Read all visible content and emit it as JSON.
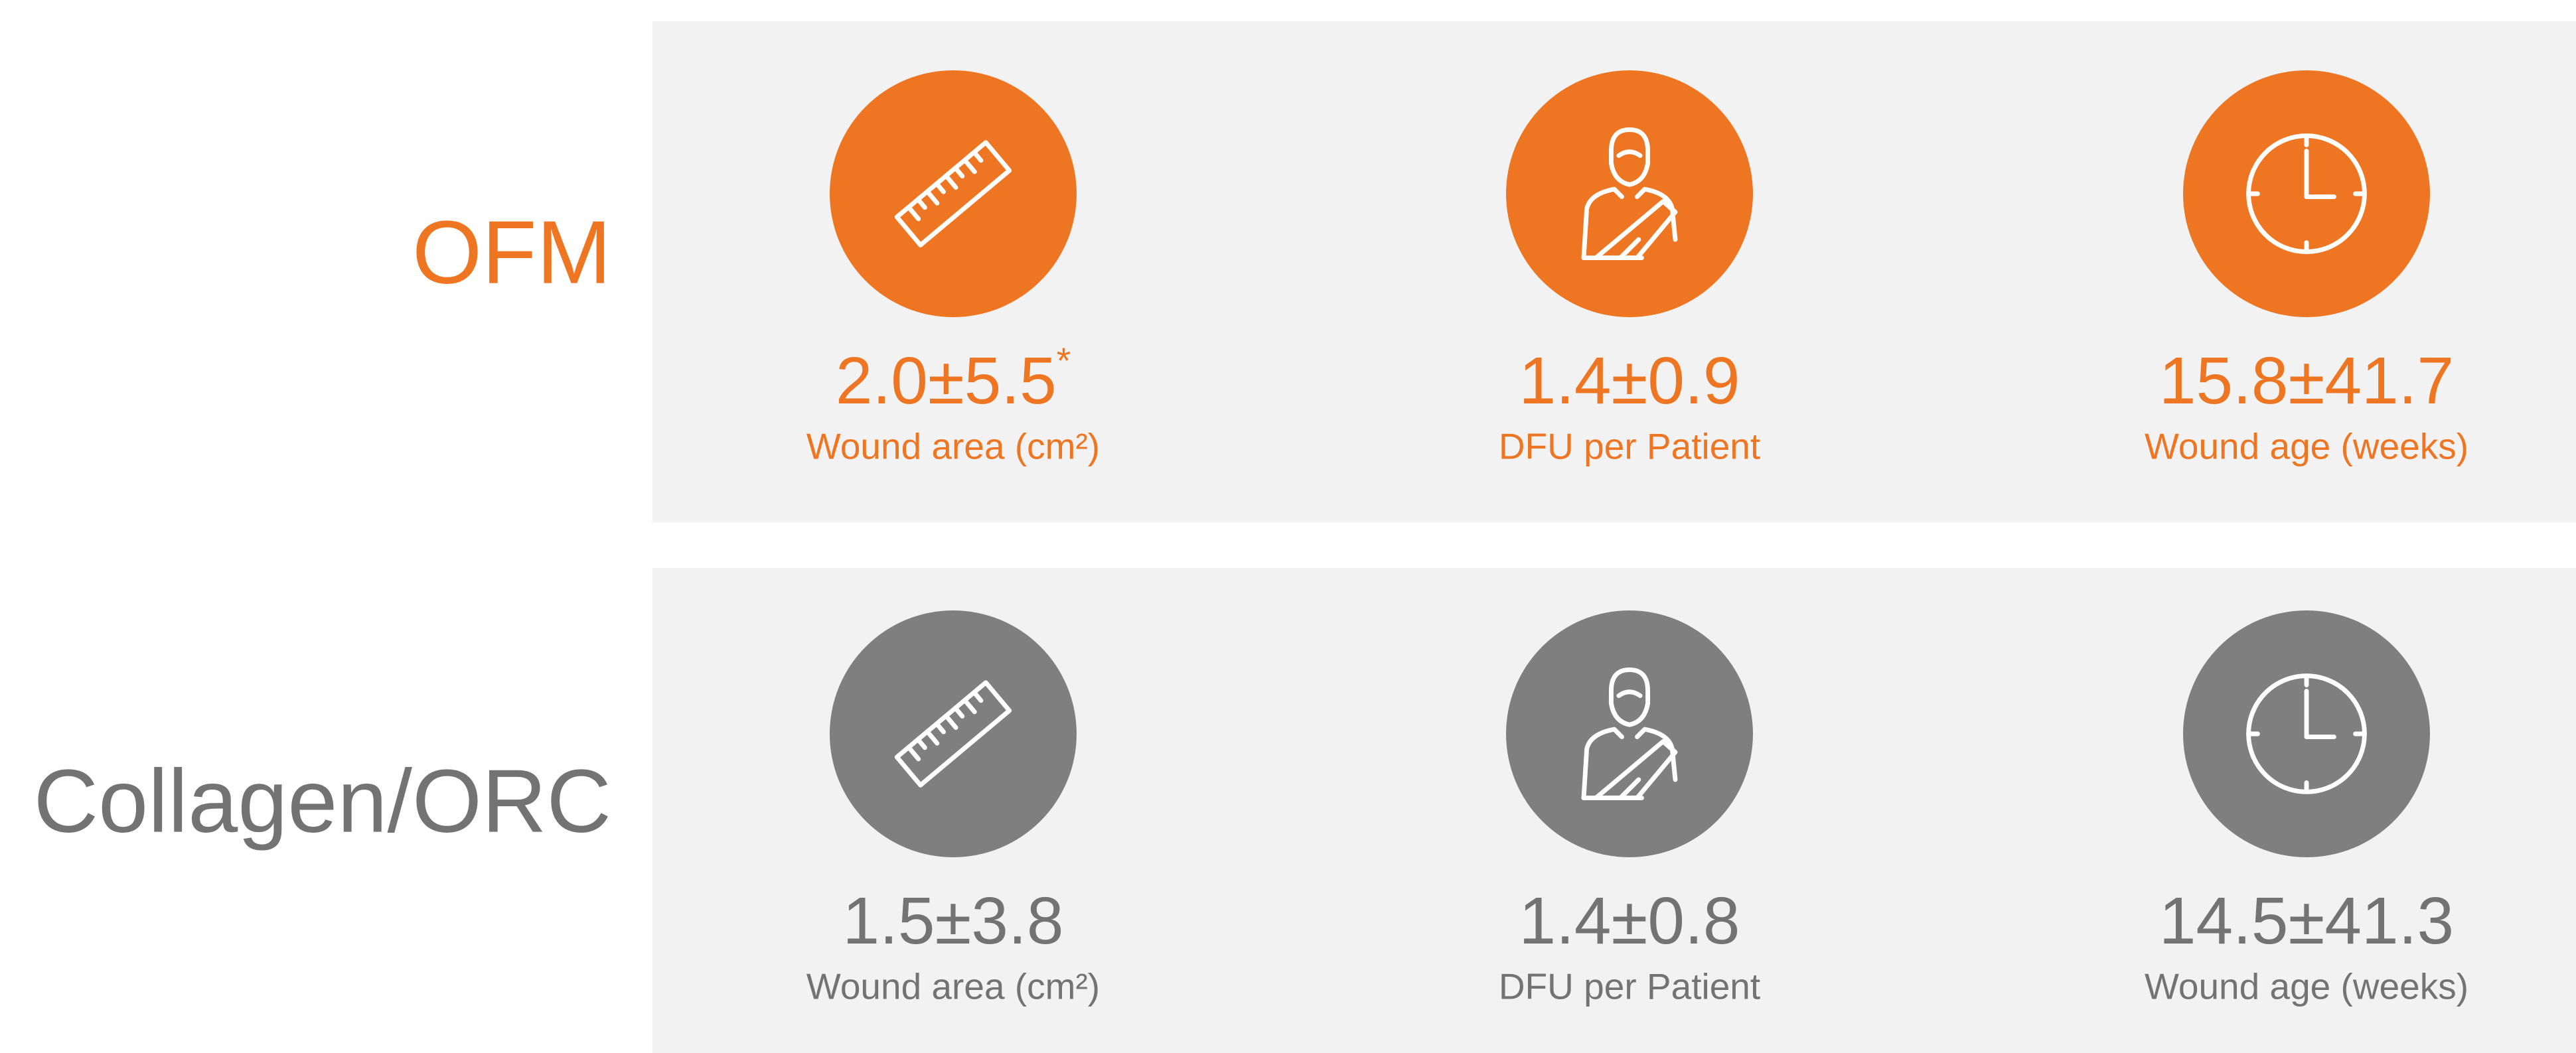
{
  "rows": [
    {
      "label": "OFM",
      "items": [
        {
          "value": "2.0±5.5",
          "marker": "*",
          "caption": "Wound area (cm²)"
        },
        {
          "value": "1.4±0.9",
          "caption": "DFU per Patient"
        },
        {
          "value": "15.8±41.7",
          "caption": "Wound age (weeks)"
        }
      ]
    },
    {
      "label": "Collagen/ORC",
      "items": [
        {
          "value": "1.5±3.8",
          "caption": "Wound area (cm²)"
        },
        {
          "value": "1.4±0.8",
          "caption": "DFU per Patient"
        },
        {
          "value": "14.5±41.3",
          "caption": "Wound age (weeks)"
        }
      ]
    }
  ]
}
